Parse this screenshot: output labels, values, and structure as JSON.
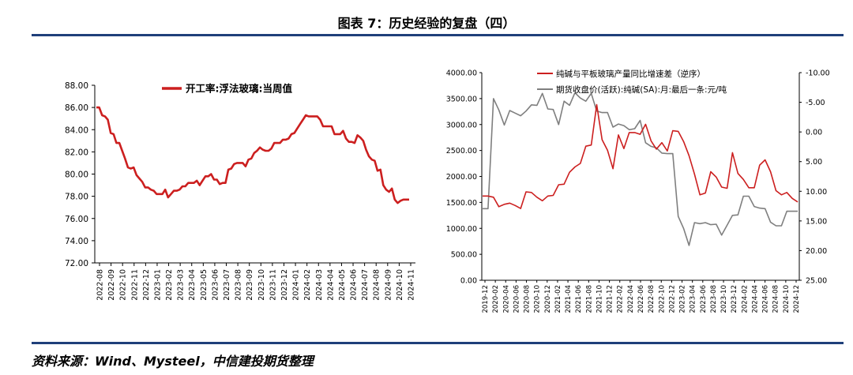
{
  "figure": {
    "title": "图表 7：历史经验的复盘（四）",
    "source": "资料来源：Wind、Mysteel，中信建投期货整理"
  },
  "colors": {
    "red": "#cc1f1f",
    "gray": "#7f7f7f",
    "rule": "#1f3f7a"
  },
  "chart_data": [
    {
      "type": "line",
      "legend": [
        "开工率:浮法玻璃:当周值"
      ],
      "legend_position": "top-right",
      "grid": false,
      "xlabel": "",
      "ylabel": "",
      "ylim": [
        72,
        88
      ],
      "yticks": [
        "88.00",
        "86.00",
        "84.00",
        "82.00",
        "80.00",
        "78.00",
        "76.00",
        "74.00",
        "72.00"
      ],
      "xticks": [
        "2022-08",
        "2022-09",
        "2022-10",
        "2022-11",
        "2022-12",
        "2023-01",
        "2023-02",
        "2023-03",
        "2023-04",
        "2023-05",
        "2023-06",
        "2023-07",
        "2023-08",
        "2023-09",
        "2023-10",
        "2023-11",
        "2023-12",
        "2024-01",
        "2024-02",
        "2024-03",
        "2024-04",
        "2024-05",
        "2024-06",
        "2024-07",
        "2024-08",
        "2024-09",
        "2024-10",
        "2024-11"
      ],
      "series": [
        {
          "name": "开工率:浮法玻璃:当周值",
          "color": "#cc1f1f",
          "values": [
            86.0,
            86.0,
            85.3,
            85.2,
            84.9,
            83.7,
            83.6,
            82.8,
            82.8,
            82.1,
            81.4,
            80.6,
            80.5,
            80.6,
            79.9,
            79.6,
            79.3,
            78.8,
            78.8,
            78.6,
            78.5,
            78.2,
            78.2,
            78.2,
            78.6,
            77.9,
            78.2,
            78.5,
            78.5,
            78.6,
            78.9,
            78.9,
            79.2,
            79.2,
            79.2,
            79.4,
            79.0,
            79.4,
            79.8,
            79.8,
            80.0,
            79.5,
            79.5,
            79.1,
            79.2,
            79.2,
            80.4,
            80.5,
            80.9,
            81.0,
            81.0,
            81.0,
            80.7,
            81.3,
            81.4,
            81.9,
            82.1,
            82.4,
            82.2,
            82.1,
            82.1,
            82.3,
            82.8,
            82.8,
            82.8,
            83.1,
            83.1,
            83.2,
            83.6,
            83.7,
            84.1,
            84.5,
            84.9,
            85.3,
            85.2,
            85.2,
            85.2,
            85.2,
            84.9,
            84.3,
            84.3,
            84.3,
            84.3,
            83.6,
            83.6,
            83.6,
            83.9,
            83.2,
            82.9,
            82.9,
            82.8,
            83.5,
            83.3,
            83.0,
            82.2,
            81.6,
            81.3,
            81.2,
            80.3,
            80.4,
            79.0,
            78.6,
            78.4,
            78.7,
            77.7,
            77.4,
            77.6,
            77.7,
            77.7,
            77.7
          ]
        }
      ]
    },
    {
      "type": "line",
      "legend": [
        "纯碱与平板玻璃产量同比增速差（逆序）",
        "期货收盘价(活跃):纯碱(SA):月:最后一条:元/吨"
      ],
      "legend_position": "top-right",
      "grid": false,
      "ylim_left": [
        0,
        4000
      ],
      "ylim_right": [
        25,
        -10
      ],
      "yticks_left": [
        "4000.00",
        "3500.00",
        "3000.00",
        "2500.00",
        "2000.00",
        "1500.00",
        "1000.00",
        "500.00",
        "0.00"
      ],
      "yticks_right": [
        "-10.00",
        "-5.00",
        "0.00",
        "5.00",
        "10.00",
        "15.00",
        "20.00",
        "25.00"
      ],
      "xticks": [
        "2019-12",
        "2020-02",
        "2020-04",
        "2020-06",
        "2020-08",
        "2020-10",
        "2020-12",
        "2021-02",
        "2021-04",
        "2021-06",
        "2021-08",
        "2021-10",
        "2021-12",
        "2022-02",
        "2022-04",
        "2022-06",
        "2022-08",
        "2022-10",
        "2022-12",
        "2023-02",
        "2023-04",
        "2023-06",
        "2023-08",
        "2023-10",
        "2023-12",
        "2024-02",
        "2024-04",
        "2024-06",
        "2024-08",
        "2024-10",
        "2024-12"
      ],
      "series": [
        {
          "name": "期货收盘价(活跃):纯碱(SA):月:最后一条:元/吨",
          "axis": "left",
          "color": "#7f7f7f",
          "values": [
            1380,
            1380,
            3500,
            3280,
            2990,
            3270,
            3220,
            3170,
            3260,
            3380,
            3370,
            3600,
            3300,
            3290,
            3000,
            3450,
            3370,
            3610,
            3510,
            3450,
            3600,
            3260,
            3230,
            3230,
            2950,
            3010,
            2980,
            2900,
            2920,
            3080,
            2650,
            2580,
            2550,
            2450,
            2440,
            2440,
            1230,
            1000,
            670,
            1110,
            1090,
            1110,
            1070,
            1080,
            870,
            1060,
            1250,
            1260,
            1620,
            1620,
            1420,
            1390,
            1380,
            1120,
            1050,
            1050,
            1330,
            1330,
            1330
          ]
        },
        {
          "name": "纯碱与平板玻璃产量同比增速差（逆序）",
          "axis": "right",
          "color": "#cc1f1f",
          "values": [
            10.8,
            10.8,
            11.0,
            12.6,
            12.2,
            12.0,
            12.4,
            12.9,
            10.1,
            10.2,
            11.0,
            11.6,
            10.8,
            10.7,
            8.9,
            8.8,
            6.8,
            5.9,
            5.3,
            2.4,
            2.2,
            -4.6,
            1.3,
            3.1,
            6.2,
            0.5,
            2.8,
            0.1,
            0.1,
            0.4,
            -1.3,
            1.5,
            2.9,
            1.8,
            3.2,
            -0.2,
            -0.1,
            1.6,
            4.0,
            7.1,
            10.6,
            10.3,
            6.7,
            7.6,
            9.3,
            9.5,
            3.5,
            7.0,
            8.0,
            9.4,
            9.4,
            5.6,
            4.7,
            6.7,
            9.9,
            10.6,
            10.2,
            11.2,
            11.8
          ]
        }
      ]
    }
  ]
}
